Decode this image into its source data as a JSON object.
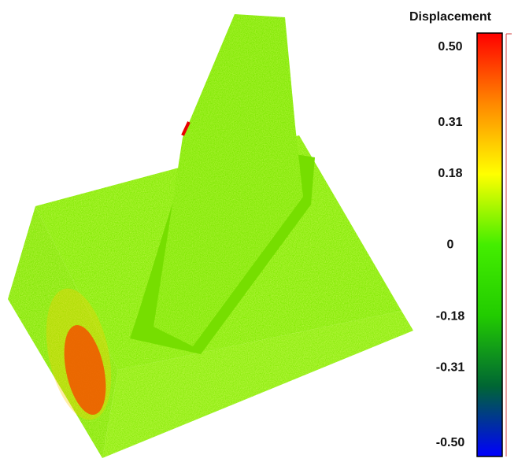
{
  "chart_data": {
    "type": "colorbar",
    "title": "Displacement",
    "colors": [
      "#0000ff",
      "#006633",
      "#22cc00",
      "#44ee00",
      "#ffff00",
      "#ff8800",
      "#ff0000"
    ],
    "ylim": [
      -0.5,
      0.5
    ],
    "yticks": [
      {
        "value": 0.5,
        "label": "0.50"
      },
      0.31,
      0.18,
      0,
      -0.18,
      -0.31,
      {
        "value": -0.5,
        "label": "-0.50"
      }
    ]
  }
}
